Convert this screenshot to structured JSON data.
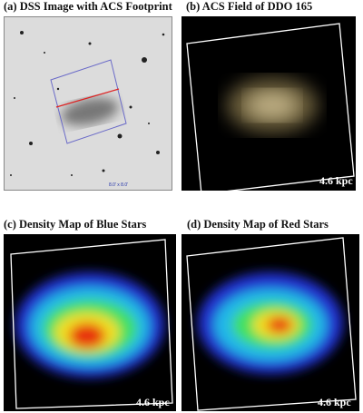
{
  "panels": [
    {
      "label": "(a) DSS Image with ACS Footprint",
      "scale": "8.0' x 8.0'"
    },
    {
      "label": "(b) ACS Field of DDO 165",
      "scale": "4.6 kpc"
    },
    {
      "label": "(c) Density Map of Blue Stars",
      "scale": "4.6 kpc"
    },
    {
      "label": "(d) Density Map of Red Stars",
      "scale": "4.6 kpc"
    }
  ]
}
